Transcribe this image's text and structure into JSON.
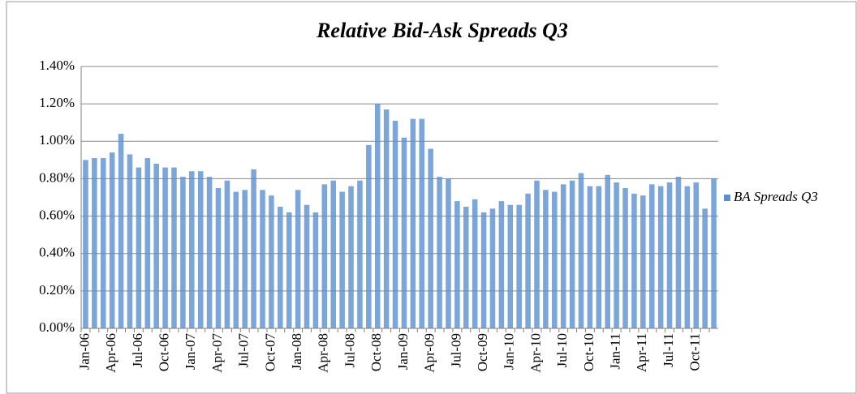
{
  "chart_data": {
    "type": "bar",
    "title": "Relative Bid-Ask Spreads Q3",
    "categories": [
      "Jan-06",
      null,
      null,
      "Apr-06",
      null,
      null,
      "Jul-06",
      null,
      null,
      "Oct-06",
      null,
      null,
      "Jan-07",
      null,
      null,
      "Apr-07",
      null,
      null,
      "Jul-07",
      null,
      null,
      "Oct-07",
      null,
      null,
      "Jan-08",
      null,
      null,
      "Apr-08",
      null,
      null,
      "Jul-08",
      null,
      null,
      "Oct-08",
      null,
      null,
      "Jan-09",
      null,
      null,
      "Apr-09",
      null,
      null,
      "Jul-09",
      null,
      null,
      "Oct-09",
      null,
      null,
      "Jan-10",
      null,
      null,
      "Apr-10",
      null,
      null,
      "Jul-10",
      null,
      null,
      "Oct-10",
      null,
      null,
      "Jan-11",
      null,
      null,
      "Apr-11",
      null,
      null,
      "Jul-11",
      null,
      null,
      "Oct-11",
      null,
      null
    ],
    "series": [
      {
        "name": "BA Spreads Q3",
        "color": "#5b8fd0",
        "values": [
          0.9,
          0.91,
          0.91,
          0.94,
          1.04,
          0.93,
          0.86,
          0.91,
          0.88,
          0.86,
          0.86,
          0.81,
          0.84,
          0.84,
          0.81,
          0.75,
          0.79,
          0.73,
          0.74,
          0.85,
          0.74,
          0.71,
          0.65,
          0.62,
          0.74,
          0.66,
          0.62,
          0.77,
          0.79,
          0.73,
          0.76,
          0.79,
          0.98,
          1.2,
          1.17,
          1.11,
          1.02,
          1.12,
          1.12,
          0.96,
          0.81,
          0.8,
          0.68,
          0.65,
          0.69,
          0.62,
          0.64,
          0.68,
          0.66,
          0.66,
          0.72,
          0.79,
          0.74,
          0.73,
          0.77,
          0.79,
          0.83,
          0.76,
          0.76,
          0.82,
          0.78,
          0.75,
          0.72,
          0.71,
          0.77,
          0.76,
          0.78,
          0.81,
          0.76,
          0.78,
          0.64,
          0.8
        ]
      }
    ],
    "ylim": [
      0,
      1.4
    ],
    "yticks": [
      {
        "value": 0,
        "label": "0.00%"
      },
      {
        "value": 0.2,
        "label": "0.20%"
      },
      {
        "value": 0.4,
        "label": "0.40%"
      },
      {
        "value": 0.6,
        "label": "0.60%"
      },
      {
        "value": 0.8,
        "label": "0.80%"
      },
      {
        "value": 1.0,
        "label": "1.00%"
      },
      {
        "value": 1.2,
        "label": "1.20%"
      },
      {
        "value": 1.4,
        "label": "1.40%"
      }
    ],
    "grid": true,
    "legend": "right"
  }
}
